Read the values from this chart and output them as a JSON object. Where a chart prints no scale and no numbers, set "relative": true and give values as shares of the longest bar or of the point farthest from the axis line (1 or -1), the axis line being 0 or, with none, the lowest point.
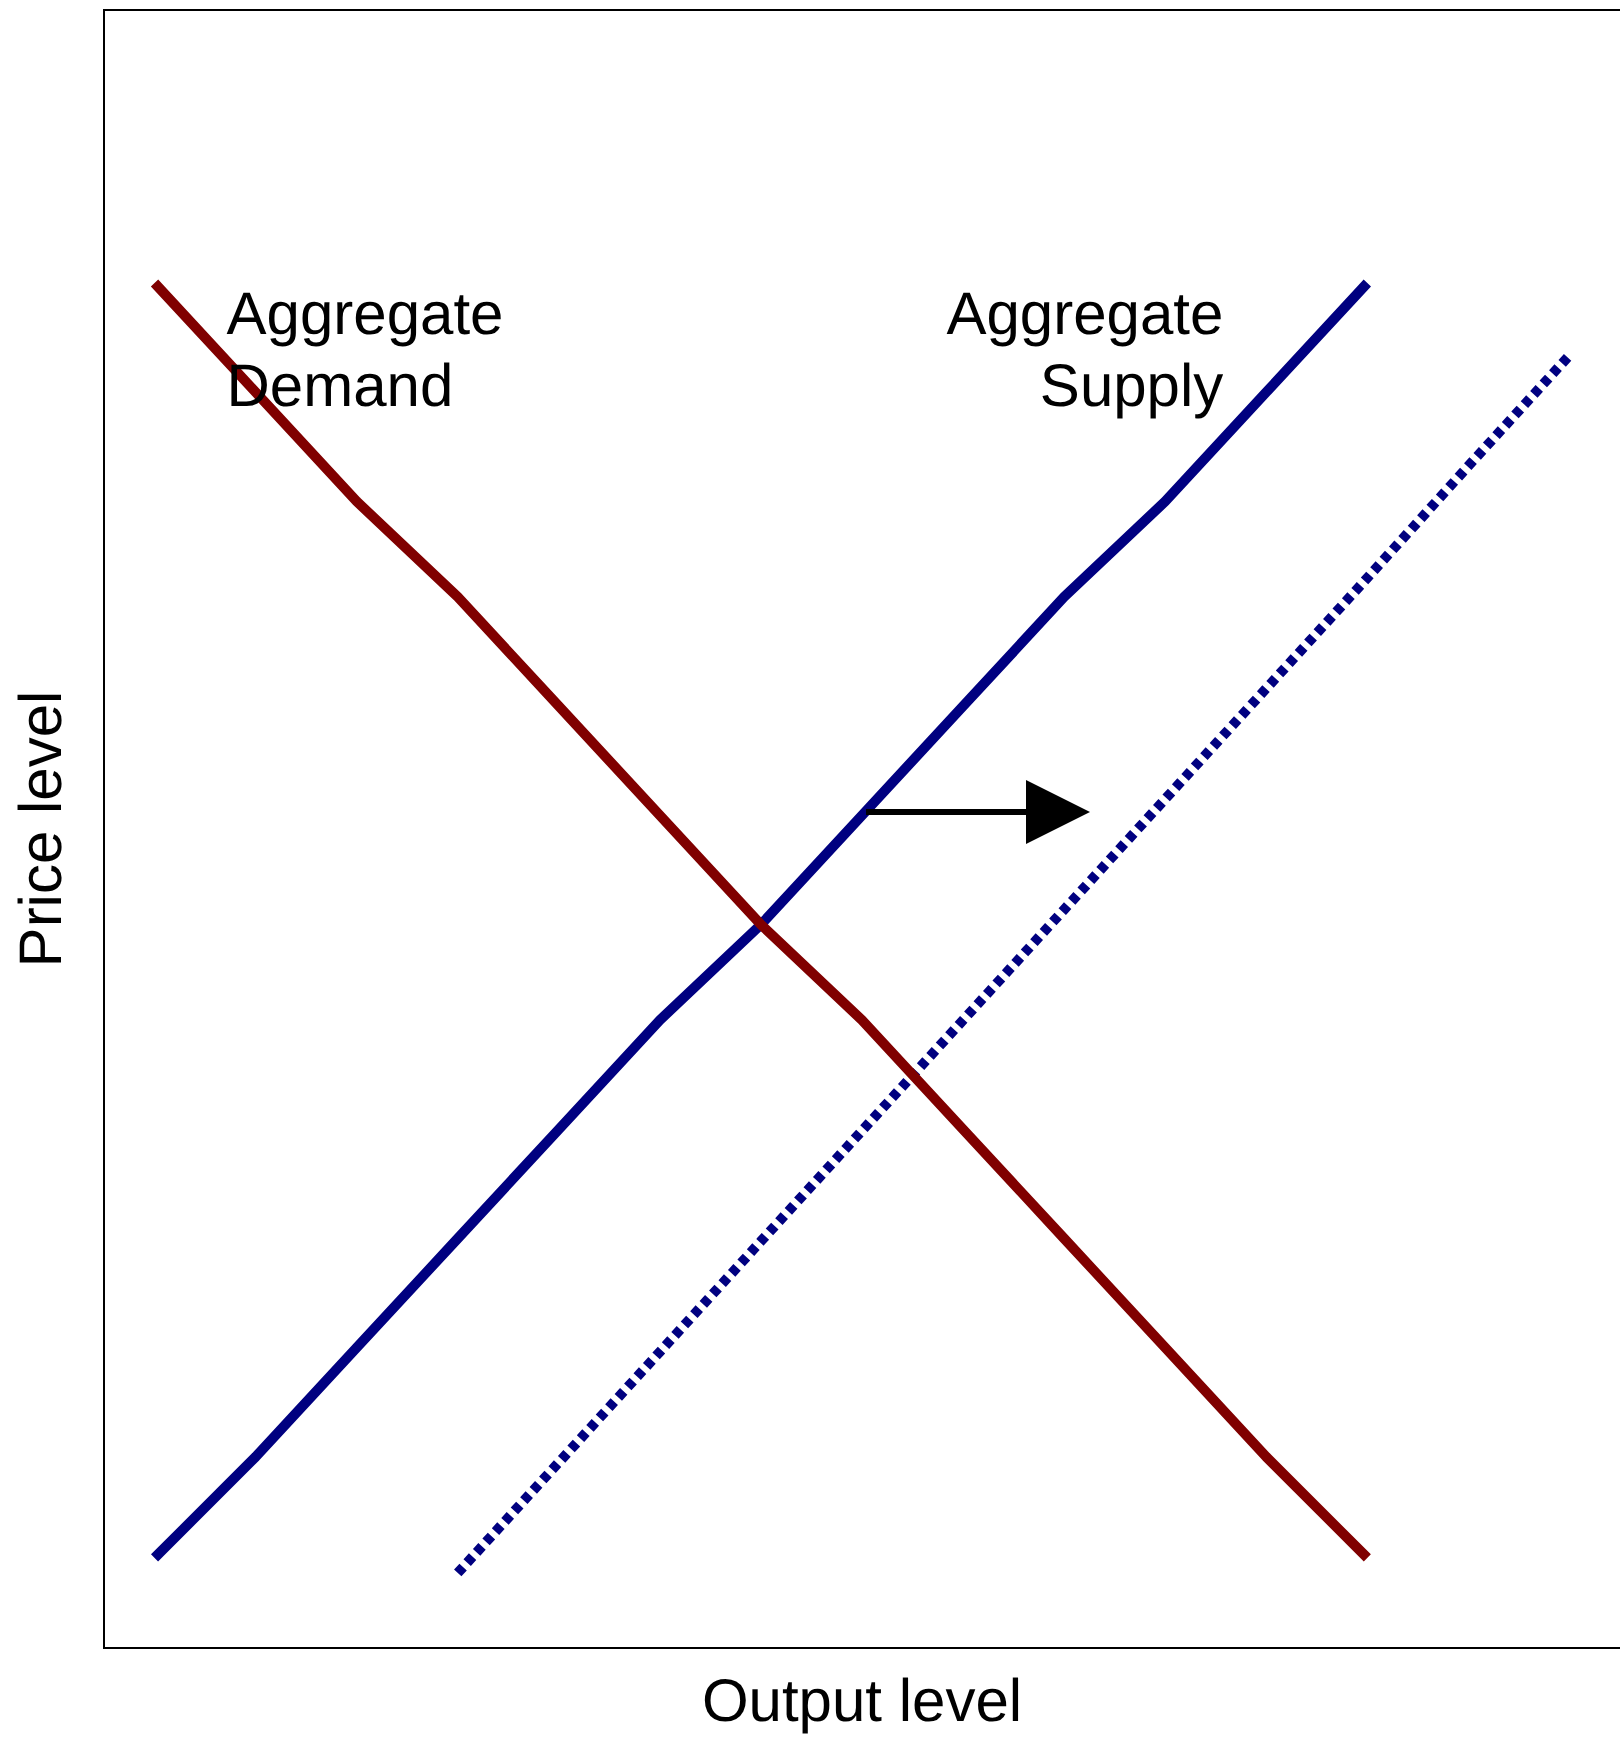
{
  "chart_data": {
    "type": "line",
    "relative": true,
    "xlabel": "Output level",
    "ylabel": "Price level",
    "categories": [
      null,
      null,
      null,
      null,
      null,
      null,
      null,
      null,
      null,
      null,
      null,
      null,
      null,
      null,
      null
    ],
    "grid": false,
    "legend": false,
    "marker": "none",
    "series": [
      {
        "name": "Aggregate Demand",
        "color": "#800000",
        "line_style": "solid",
        "values": [
          1,
          0.92,
          0.84,
          0.77,
          0.69,
          0.61,
          0.53,
          0.46,
          0.38,
          0.3,
          0.22,
          0.14,
          0.066,
          null,
          null
        ]
      },
      {
        "name": "Aggregate Supply",
        "color": "#000080",
        "line_style": "solid",
        "values": [
          0.066,
          0.14,
          0.22,
          0.3,
          0.38,
          0.46,
          0.53,
          0.61,
          0.69,
          0.77,
          0.84,
          0.92,
          1,
          null,
          null
        ]
      },
      {
        "color": "#000080",
        "line_style": "dotted",
        "values": [
          null,
          null,
          null,
          0.055,
          0.136,
          0.217,
          0.298,
          0.379,
          0.46,
          0.541,
          0.622,
          0.703,
          0.784,
          0.866,
          0.947
        ]
      }
    ]
  }
}
